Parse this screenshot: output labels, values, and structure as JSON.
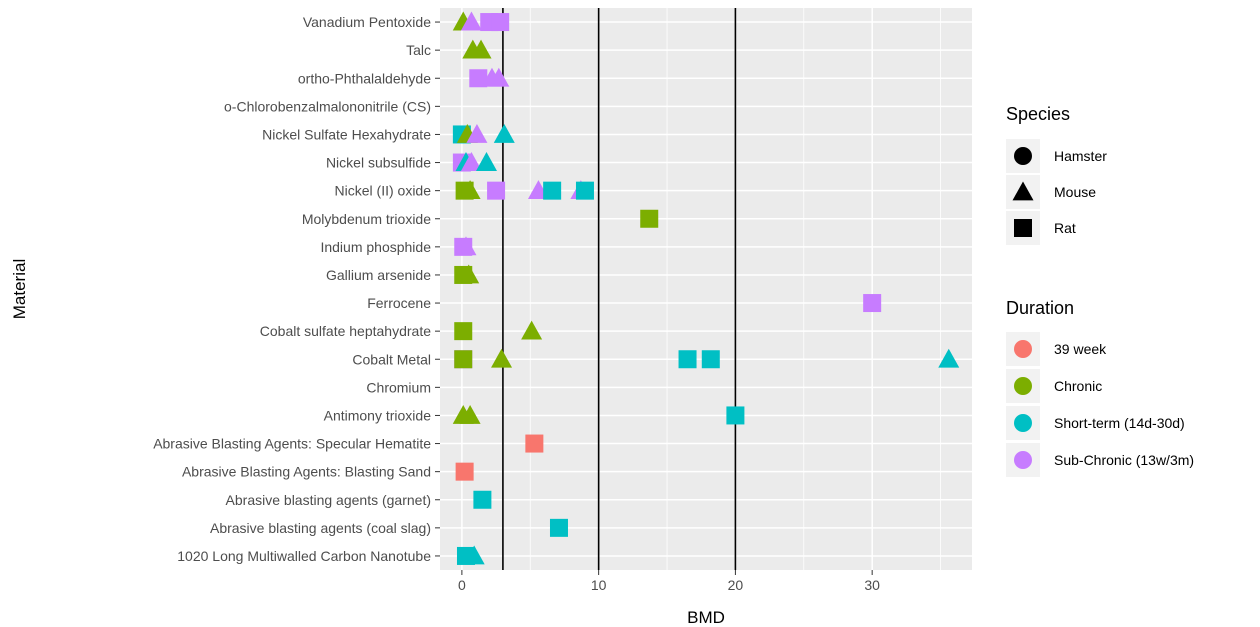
{
  "chart_data": {
    "type": "scatter",
    "xlabel": "BMD",
    "ylabel": "Material",
    "xlim": [
      -1.6,
      37.3
    ],
    "x_ticks": [
      0,
      10,
      20,
      30
    ],
    "reference_lines": [
      3,
      10,
      20
    ],
    "grid": true,
    "legend_position": "right",
    "categories": [
      "1020 Long Multiwalled Carbon Nanotube",
      "Abrasive blasting agents (coal slag)",
      "Abrasive blasting agents (garnet)",
      "Abrasive Blasting Agents: Blasting Sand",
      "Abrasive Blasting Agents: Specular Hematite",
      "Antimony trioxide",
      "Chromium",
      "Cobalt Metal",
      "Cobalt sulfate heptahydrate",
      "Ferrocene",
      "Gallium arsenide",
      "Indium phosphide",
      "Molybdenum trioxide",
      "Nickel (II) oxide",
      "Nickel subsulfide",
      "Nickel Sulfate Hexahydrate",
      "o-Chlorobenzalmalononitrile (CS)",
      "ortho-Phthalaldehyde",
      "Talc",
      "Vanadium Pentoxide"
    ],
    "legend": {
      "species": {
        "title": "Species",
        "items": [
          {
            "label": "Hamster",
            "shape": "circle"
          },
          {
            "label": "Mouse",
            "shape": "triangle"
          },
          {
            "label": "Rat",
            "shape": "square"
          }
        ]
      },
      "duration": {
        "title": "Duration",
        "items": [
          {
            "label": "39 week",
            "color": "#F8766D"
          },
          {
            "label": "Chronic",
            "color": "#7CAE00"
          },
          {
            "label": "Short-term (14d-30d)",
            "color": "#00BFC4"
          },
          {
            "label": "Sub-Chronic (13w/3m)",
            "color": "#C77CFF"
          }
        ]
      }
    },
    "points": [
      {
        "material": "1020 Long Multiwalled Carbon Nanotube",
        "x": 0.3,
        "species": "Rat",
        "duration": "Short-term (14d-30d)"
      },
      {
        "material": "1020 Long Multiwalled Carbon Nanotube",
        "x": 0.9,
        "species": "Mouse",
        "duration": "Short-term (14d-30d)"
      },
      {
        "material": "Abrasive blasting agents (coal slag)",
        "x": 7.1,
        "species": "Rat",
        "duration": "Short-term (14d-30d)"
      },
      {
        "material": "Abrasive blasting agents (garnet)",
        "x": 1.5,
        "species": "Rat",
        "duration": "Short-term (14d-30d)"
      },
      {
        "material": "Abrasive Blasting Agents: Blasting Sand",
        "x": 0.2,
        "species": "Rat",
        "duration": "39 week"
      },
      {
        "material": "Abrasive Blasting Agents: Specular Hematite",
        "x": 5.3,
        "species": "Rat",
        "duration": "39 week"
      },
      {
        "material": "Antimony trioxide",
        "x": 0.1,
        "species": "Mouse",
        "duration": "Chronic"
      },
      {
        "material": "Antimony trioxide",
        "x": 0.6,
        "species": "Mouse",
        "duration": "Chronic"
      },
      {
        "material": "Antimony trioxide",
        "x": 20.0,
        "species": "Rat",
        "duration": "Short-term (14d-30d)"
      },
      {
        "material": "Cobalt Metal",
        "x": 0.1,
        "species": "Rat",
        "duration": "Sub-Chronic (13w/3m)"
      },
      {
        "material": "Cobalt Metal",
        "x": 0.1,
        "species": "Rat",
        "duration": "Chronic"
      },
      {
        "material": "Cobalt Metal",
        "x": 2.9,
        "species": "Mouse",
        "duration": "Chronic"
      },
      {
        "material": "Cobalt Metal",
        "x": 16.5,
        "species": "Rat",
        "duration": "Short-term (14d-30d)"
      },
      {
        "material": "Cobalt Metal",
        "x": 18.2,
        "species": "Rat",
        "duration": "Short-term (14d-30d)"
      },
      {
        "material": "Cobalt Metal",
        "x": 35.6,
        "species": "Mouse",
        "duration": "Short-term (14d-30d)"
      },
      {
        "material": "Cobalt sulfate heptahydrate",
        "x": 0.1,
        "species": "Rat",
        "duration": "Chronic"
      },
      {
        "material": "Cobalt sulfate heptahydrate",
        "x": 5.1,
        "species": "Mouse",
        "duration": "Chronic"
      },
      {
        "material": "Ferrocene",
        "x": 30.0,
        "species": "Rat",
        "duration": "Sub-Chronic (13w/3m)"
      },
      {
        "material": "Gallium arsenide",
        "x": 0.1,
        "species": "Rat",
        "duration": "Chronic"
      },
      {
        "material": "Gallium arsenide",
        "x": 0.5,
        "species": "Mouse",
        "duration": "Chronic"
      },
      {
        "material": "Indium phosphide",
        "x": 0.1,
        "species": "Rat",
        "duration": "Sub-Chronic (13w/3m)"
      },
      {
        "material": "Indium phosphide",
        "x": 0.3,
        "species": "Mouse",
        "duration": "Sub-Chronic (13w/3m)"
      },
      {
        "material": "Molybdenum trioxide",
        "x": 13.7,
        "species": "Rat",
        "duration": "Chronic"
      },
      {
        "material": "Nickel (II) oxide",
        "x": 0.2,
        "species": "Rat",
        "duration": "Chronic"
      },
      {
        "material": "Nickel (II) oxide",
        "x": 0.6,
        "species": "Mouse",
        "duration": "Chronic"
      },
      {
        "material": "Nickel (II) oxide",
        "x": 2.5,
        "species": "Rat",
        "duration": "Sub-Chronic (13w/3m)"
      },
      {
        "material": "Nickel (II) oxide",
        "x": 5.6,
        "species": "Mouse",
        "duration": "Sub-Chronic (13w/3m)"
      },
      {
        "material": "Nickel (II) oxide",
        "x": 6.6,
        "species": "Rat",
        "duration": "Short-term (14d-30d)"
      },
      {
        "material": "Nickel (II) oxide",
        "x": 8.7,
        "species": "Mouse",
        "duration": "Sub-Chronic (13w/3m)"
      },
      {
        "material": "Nickel (II) oxide",
        "x": 9.0,
        "species": "Rat",
        "duration": "Short-term (14d-30d)"
      },
      {
        "material": "Nickel subsulfide",
        "x": 0.0,
        "species": "Rat",
        "duration": "Sub-Chronic (13w/3m)"
      },
      {
        "material": "Nickel subsulfide",
        "x": 0.3,
        "species": "Mouse",
        "duration": "Short-term (14d-30d)"
      },
      {
        "material": "Nickel subsulfide",
        "x": 0.7,
        "species": "Mouse",
        "duration": "Sub-Chronic (13w/3m)"
      },
      {
        "material": "Nickel subsulfide",
        "x": 1.8,
        "species": "Mouse",
        "duration": "Short-term (14d-30d)"
      },
      {
        "material": "Nickel Sulfate Hexahydrate",
        "x": 0.0,
        "species": "Rat",
        "duration": "Short-term (14d-30d)"
      },
      {
        "material": "Nickel Sulfate Hexahydrate",
        "x": 0.4,
        "species": "Mouse",
        "duration": "Chronic"
      },
      {
        "material": "Nickel Sulfate Hexahydrate",
        "x": 1.1,
        "species": "Mouse",
        "duration": "Sub-Chronic (13w/3m)"
      },
      {
        "material": "Nickel Sulfate Hexahydrate",
        "x": 3.1,
        "species": "Mouse",
        "duration": "Short-term (14d-30d)"
      },
      {
        "material": "ortho-Phthalaldehyde",
        "x": 1.2,
        "species": "Rat",
        "duration": "Sub-Chronic (13w/3m)"
      },
      {
        "material": "ortho-Phthalaldehyde",
        "x": 2.2,
        "species": "Mouse",
        "duration": "Sub-Chronic (13w/3m)"
      },
      {
        "material": "ortho-Phthalaldehyde",
        "x": 2.7,
        "species": "Mouse",
        "duration": "Sub-Chronic (13w/3m)"
      },
      {
        "material": "Talc",
        "x": 0.8,
        "species": "Mouse",
        "duration": "Chronic"
      },
      {
        "material": "Talc",
        "x": 1.4,
        "species": "Mouse",
        "duration": "Chronic"
      },
      {
        "material": "Vanadium Pentoxide",
        "x": 0.1,
        "species": "Mouse",
        "duration": "Chronic"
      },
      {
        "material": "Vanadium Pentoxide",
        "x": 0.7,
        "species": "Mouse",
        "duration": "Sub-Chronic (13w/3m)"
      },
      {
        "material": "Vanadium Pentoxide",
        "x": 2.0,
        "species": "Rat",
        "duration": "Sub-Chronic (13w/3m)"
      },
      {
        "material": "Vanadium Pentoxide",
        "x": 2.8,
        "species": "Rat",
        "duration": "Sub-Chronic (13w/3m)"
      }
    ]
  }
}
